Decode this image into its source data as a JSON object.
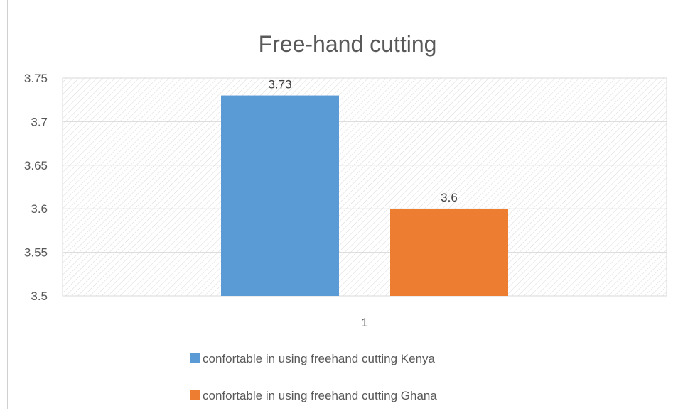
{
  "chart_data": {
    "type": "bar",
    "title": "Free-hand cutting",
    "categories": [
      "1"
    ],
    "series": [
      {
        "name": "confortable in using freehand cutting Kenya",
        "values": [
          3.73
        ],
        "color": "#5B9BD5"
      },
      {
        "name": "confortable in using freehand cutting Ghana",
        "values": [
          3.6
        ],
        "color": "#ED7D31"
      }
    ],
    "data_labels": [
      "3.73",
      "3.6"
    ],
    "ylim": [
      3.5,
      3.75
    ],
    "yticks": [
      "3.75",
      "3.7",
      "3.65",
      "3.6",
      "3.55",
      "3.5"
    ],
    "ytick_values": [
      3.75,
      3.7,
      3.65,
      3.6,
      3.55,
      3.5
    ],
    "grid": true,
    "legend_position": "bottom",
    "xlabel": "",
    "ylabel": ""
  }
}
